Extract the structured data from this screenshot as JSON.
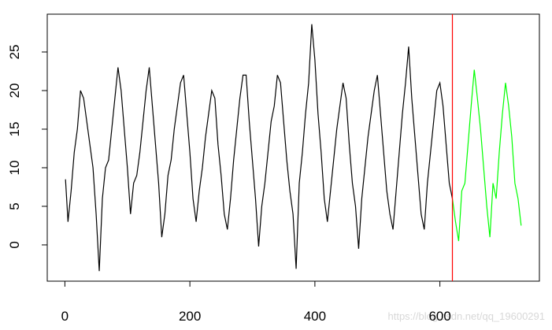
{
  "chart_data": {
    "type": "line",
    "xlim": [
      -28.2,
      759.2
    ],
    "ylim": [
      -4.7,
      29.9
    ],
    "xticks": [
      0,
      200,
      400,
      600
    ],
    "yticks": [
      0,
      5,
      10,
      15,
      20,
      25
    ],
    "vline": {
      "x": 620,
      "color": "#ff0000"
    },
    "annotation": "https://blog.csdn.net/qq_19600291",
    "series": [
      {
        "color": "#000000",
        "x": [
          1,
          5,
          10,
          15,
          20,
          25,
          30,
          35,
          40,
          45,
          50,
          55,
          60,
          65,
          70,
          75,
          80,
          85,
          90,
          95,
          100,
          105,
          110,
          115,
          120,
          125,
          130,
          135,
          140,
          145,
          150,
          155,
          160,
          165,
          170,
          175,
          180,
          185,
          190,
          195,
          200,
          205,
          210,
          215,
          220,
          225,
          230,
          235,
          240,
          245,
          250,
          255,
          260,
          265,
          270,
          275,
          280,
          285,
          290,
          295,
          300,
          305,
          310,
          315,
          320,
          325,
          330,
          335,
          340,
          345,
          350,
          355,
          360,
          365,
          370,
          375,
          380,
          385,
          390,
          395,
          400,
          405,
          410,
          415,
          420,
          425,
          430,
          435,
          440,
          445,
          450,
          455,
          460,
          465,
          470,
          475,
          480,
          485,
          490,
          495,
          500,
          505,
          510,
          515,
          520,
          525,
          530,
          535,
          540,
          545,
          550,
          555,
          560,
          565,
          570,
          575,
          580,
          585,
          590,
          595,
          600,
          605,
          610,
          615,
          620
        ],
        "values": [
          8.5,
          3,
          7,
          12,
          15,
          20,
          19,
          16,
          13,
          10,
          4,
          -3.4,
          6,
          10,
          11,
          15,
          19,
          23,
          20,
          15,
          10,
          4,
          8,
          9,
          12,
          16,
          20,
          23,
          18,
          13,
          8,
          1,
          4,
          9,
          11,
          15,
          18,
          21,
          22,
          17,
          12,
          6,
          3,
          7,
          10,
          14,
          17,
          20,
          19,
          13,
          9,
          4,
          2,
          6,
          11,
          15,
          19,
          22,
          22,
          16,
          11,
          6,
          -0.2,
          5,
          8,
          12,
          16,
          18,
          22,
          21,
          16,
          11,
          7,
          4,
          -3.1,
          8,
          12,
          17,
          21,
          28.6,
          24,
          17,
          12,
          6,
          3,
          7,
          11,
          15,
          18,
          21,
          19,
          13,
          8,
          5,
          -0.5,
          6,
          10,
          14,
          17,
          20,
          22,
          17,
          12,
          7,
          4,
          2,
          7,
          12,
          17,
          21,
          25.7,
          19,
          14,
          9,
          4,
          2,
          8,
          12,
          16,
          20,
          21,
          18,
          13,
          8,
          6
        ]
      },
      {
        "color": "#00ff00",
        "x": [
          620,
          625,
          630,
          635,
          640,
          645,
          650,
          655,
          660,
          665,
          670,
          675,
          680,
          685,
          690,
          695,
          700,
          705,
          710,
          715,
          720,
          725,
          730
        ],
        "values": [
          6,
          3,
          0.5,
          7,
          8,
          13,
          18,
          22.7,
          19,
          15,
          10,
          5,
          1,
          8,
          6,
          12,
          17,
          21,
          18,
          14,
          8,
          6,
          2.5
        ]
      }
    ]
  }
}
